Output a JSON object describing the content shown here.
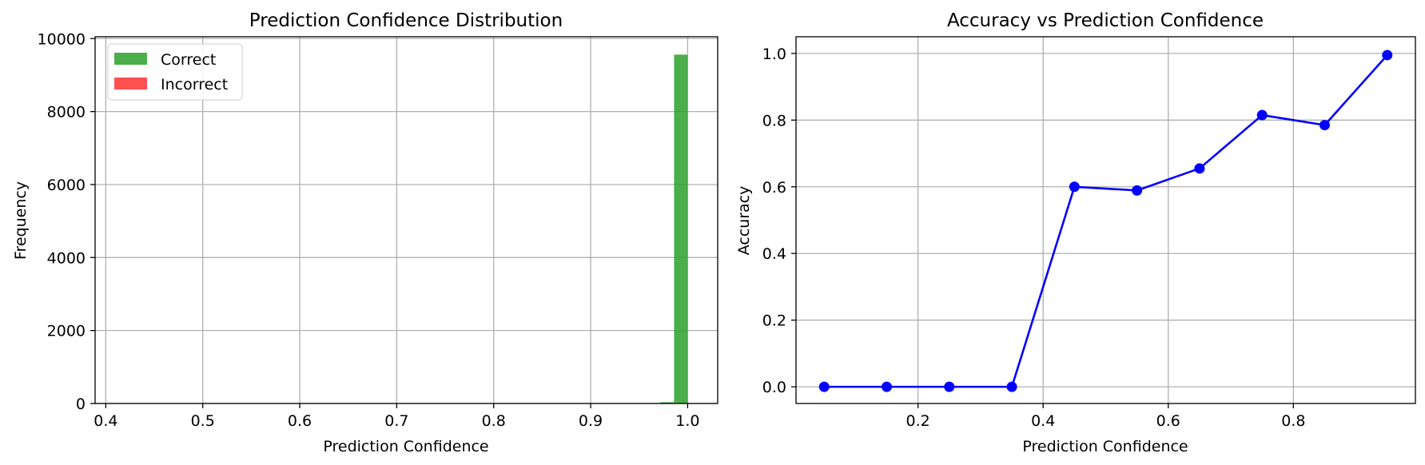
{
  "chart_data": [
    {
      "type": "bar",
      "title": "Prediction Confidence Distribution",
      "xlabel": "Prediction Confidence",
      "ylabel": "Frequency",
      "xlim": [
        0.389,
        1.031
      ],
      "ylim": [
        0,
        10050
      ],
      "xticks": [
        "0.4",
        "0.5",
        "0.6",
        "0.7",
        "0.8",
        "0.9",
        "1.0"
      ],
      "yticks": [
        "0",
        "2000",
        "4000",
        "6000",
        "8000",
        "10000"
      ],
      "grid": true,
      "legend_position": "top-left",
      "series": [
        {
          "name": "Correct",
          "color": "#2ca02c",
          "bins": [
            {
              "x0": 0.958,
              "x1": 0.972,
              "count": 8
            },
            {
              "x0": 0.972,
              "x1": 0.986,
              "count": 35
            },
            {
              "x0": 0.986,
              "x1": 1.0,
              "count": 9560
            }
          ]
        },
        {
          "name": "Incorrect",
          "color": "#ff3333",
          "bins": [
            {
              "x0": 0.972,
              "x1": 0.986,
              "count": 3
            },
            {
              "x0": 0.986,
              "x1": 1.0,
              "count": 12
            }
          ]
        }
      ]
    },
    {
      "type": "line",
      "title": "Accuracy vs Prediction Confidence",
      "xlabel": "Prediction Confidence",
      "ylabel": "Accuracy",
      "xlim": [
        0.005,
        0.995
      ],
      "ylim": [
        -0.05,
        1.05
      ],
      "xticks": [
        "0.2",
        "0.4",
        "0.6",
        "0.8"
      ],
      "yticks": [
        "0.0",
        "0.2",
        "0.4",
        "0.6",
        "0.8",
        "1.0"
      ],
      "grid": true,
      "series": [
        {
          "color": "#0000ff",
          "x": [
            0.05,
            0.15,
            0.25,
            0.35,
            0.45,
            0.55,
            0.65,
            0.75,
            0.85,
            0.95
          ],
          "y": [
            0.0,
            0.0,
            0.0,
            0.0,
            0.6,
            0.589,
            0.655,
            0.815,
            0.785,
            0.995
          ]
        }
      ]
    }
  ]
}
